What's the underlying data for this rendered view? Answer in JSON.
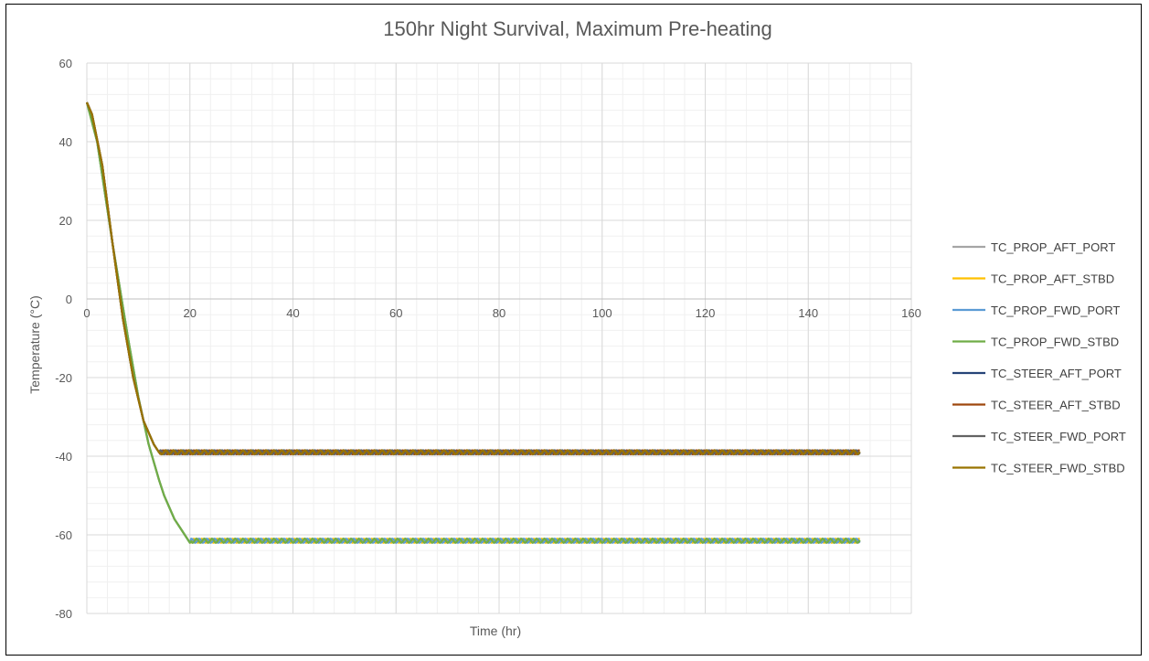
{
  "chart_data": {
    "type": "line",
    "title": "150hr Night Survival, Maximum Pre-heating",
    "xlabel": "Time (hr)",
    "ylabel": "Temperature (°C)",
    "xlim": [
      0,
      160
    ],
    "ylim": [
      -80,
      60
    ],
    "x_ticks": [
      "0",
      "20",
      "40",
      "60",
      "80",
      "100",
      "120",
      "140",
      "160"
    ],
    "y_ticks": [
      "60",
      "40",
      "20",
      "0",
      "-20",
      "-40",
      "-60",
      "-80"
    ],
    "grid": true,
    "legend_position": "right",
    "series": [
      {
        "name": "TC_PROP_AFT_PORT",
        "color": "#A5A5A5",
        "x": [
          0,
          2,
          5,
          8,
          10,
          12,
          14,
          15,
          17,
          18,
          20,
          150
        ],
        "y": [
          50,
          40,
          14,
          -10,
          -25,
          -37,
          -46,
          -50,
          -56,
          -58,
          -62,
          -61.5
        ]
      },
      {
        "name": "TC_PROP_AFT_STBD",
        "color": "#FFC000",
        "x": [
          0,
          2,
          5,
          8,
          10,
          12,
          14,
          15,
          17,
          18,
          20,
          150
        ],
        "y": [
          50,
          40,
          14,
          -10,
          -25,
          -37,
          -46,
          -50,
          -56,
          -58,
          -62,
          -61.5
        ]
      },
      {
        "name": "TC_PROP_FWD_PORT",
        "color": "#5B9BD5",
        "x": [
          0,
          2,
          5,
          8,
          10,
          12,
          14,
          15,
          17,
          18,
          20,
          150
        ],
        "y": [
          50,
          40,
          14,
          -10,
          -25,
          -37,
          -46,
          -50,
          -56,
          -58,
          -62,
          -61.5
        ]
      },
      {
        "name": "TC_PROP_FWD_STBD",
        "color": "#70AD47",
        "x": [
          0,
          2,
          5,
          8,
          10,
          12,
          14,
          15,
          17,
          18,
          20,
          150
        ],
        "y": [
          50,
          40,
          14,
          -10,
          -25,
          -37,
          -46,
          -50,
          -56,
          -58,
          -62,
          -61.5
        ]
      },
      {
        "name": "TC_STEER_AFT_PORT",
        "color": "#264478",
        "x": [
          0,
          1,
          3,
          5,
          7,
          9,
          11,
          13,
          14,
          150
        ],
        "y": [
          50,
          47,
          34,
          14,
          -5,
          -20,
          -31,
          -37,
          -39,
          -39
        ]
      },
      {
        "name": "TC_STEER_AFT_STBD",
        "color": "#9E480E",
        "x": [
          0,
          1,
          3,
          5,
          7,
          9,
          11,
          13,
          14,
          150
        ],
        "y": [
          50,
          47,
          34,
          14,
          -5,
          -20,
          -31,
          -37,
          -39,
          -39
        ]
      },
      {
        "name": "TC_STEER_FWD_PORT",
        "color": "#636363",
        "x": [
          0,
          1,
          3,
          5,
          7,
          9,
          11,
          13,
          14,
          150
        ],
        "y": [
          50,
          47,
          34,
          14,
          -5,
          -20,
          -31,
          -37,
          -39,
          -39
        ]
      },
      {
        "name": "TC_STEER_FWD_STBD",
        "color": "#997300",
        "x": [
          0,
          1,
          3,
          5,
          7,
          9,
          11,
          13,
          14,
          150
        ],
        "y": [
          50,
          47,
          34,
          14,
          -5,
          -20,
          -31,
          -37,
          -39,
          -39
        ]
      }
    ]
  }
}
